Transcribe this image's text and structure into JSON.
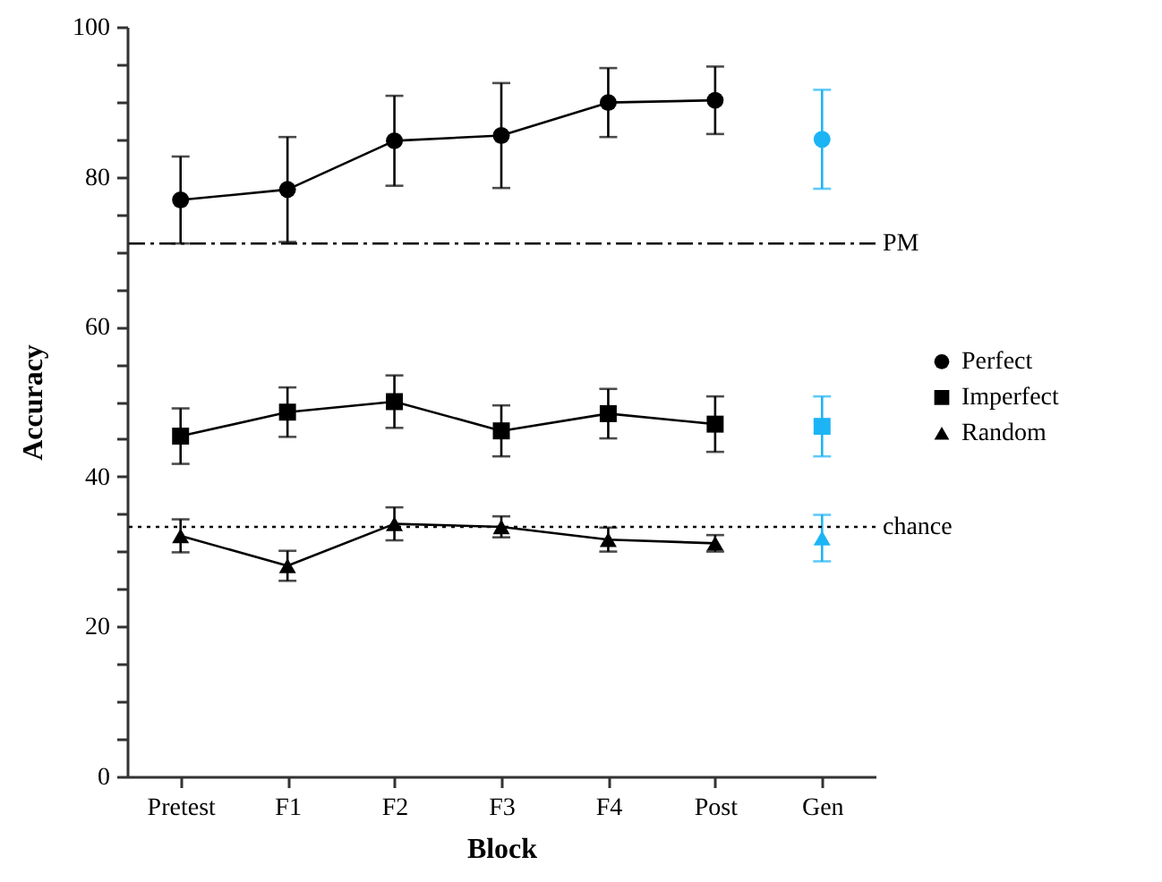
{
  "chart_data": {
    "type": "line",
    "xlabel": "Block",
    "ylabel": "Accuracy",
    "categories": [
      "Pretest",
      "F1",
      "F2",
      "F3",
      "F4",
      "Post",
      "Gen"
    ],
    "ylim": [
      0,
      100
    ],
    "yticks": [
      0,
      {
        "value": 5,
        "label": null
      },
      {
        "value": 10,
        "label": null
      },
      {
        "value": 15,
        "label": null
      },
      20,
      {
        "value": 25,
        "label": null
      },
      {
        "value": 30,
        "label": null
      },
      {
        "value": 35,
        "label": null
      },
      40,
      {
        "value": 45,
        "label": null
      },
      {
        "value": 50,
        "label": null
      },
      {
        "value": 55,
        "label": null
      },
      60,
      {
        "value": 65,
        "label": null
      },
      {
        "value": 70,
        "label": null
      },
      {
        "value": 75,
        "label": null
      },
      80,
      {
        "value": 85,
        "label": null
      },
      {
        "value": 90,
        "label": null
      },
      {
        "value": 95,
        "label": null
      },
      100
    ],
    "grid": false,
    "legend": "right",
    "line_style": "solid",
    "series": [
      {
        "name": "Perfect",
        "color": "#000000",
        "marker": "circle",
        "values": [
          76.9,
          78.3,
          84.8,
          85.5,
          89.9,
          90.2,
          null
        ],
        "errors": [
          5.8,
          7,
          6,
          7,
          4.6,
          4.5,
          null
        ]
      },
      {
        "name": "Imperfect",
        "color": "#000000",
        "marker": "square",
        "values": [
          45.4,
          48.6,
          50.0,
          46.1,
          48.4,
          47.0,
          null
        ],
        "errors": [
          3.7,
          3.3,
          3.5,
          3.4,
          3.3,
          3.7,
          null
        ]
      },
      {
        "name": "Random",
        "color": "#000000",
        "marker": "triangle",
        "values": [
          32.1,
          28.1,
          33.7,
          33.3,
          31.6,
          31.1,
          null
        ],
        "errors": [
          2.2,
          2.0,
          2.2,
          1.4,
          1.6,
          1.1,
          null
        ]
      },
      {
        "type": "scatter",
        "color": "#1db4f5",
        "marker": "circle",
        "values": [
          null,
          null,
          null,
          null,
          null,
          null,
          85.0
        ],
        "errors": [
          null,
          null,
          null,
          null,
          null,
          null,
          6.6
        ]
      },
      {
        "type": "scatter",
        "color": "#1db4f5",
        "marker": "square",
        "values": [
          null,
          null,
          null,
          null,
          null,
          null,
          46.7
        ],
        "errors": [
          null,
          null,
          null,
          null,
          null,
          null,
          4.0
        ]
      },
      {
        "type": "scatter",
        "color": "#1db4f5",
        "marker": "triangle",
        "values": [
          null,
          null,
          null,
          null,
          null,
          null,
          31.8
        ],
        "errors": [
          null,
          null,
          null,
          null,
          null,
          null,
          3.1
        ]
      }
    ],
    "ref_lines": [
      {
        "axis": "y",
        "value": 71.1,
        "label": "PM",
        "line_style": "dashdot",
        "color": "#000000"
      },
      {
        "axis": "y",
        "value": 33.3,
        "label": "chance",
        "line_style": "dotted",
        "color": "#000000"
      }
    ]
  }
}
